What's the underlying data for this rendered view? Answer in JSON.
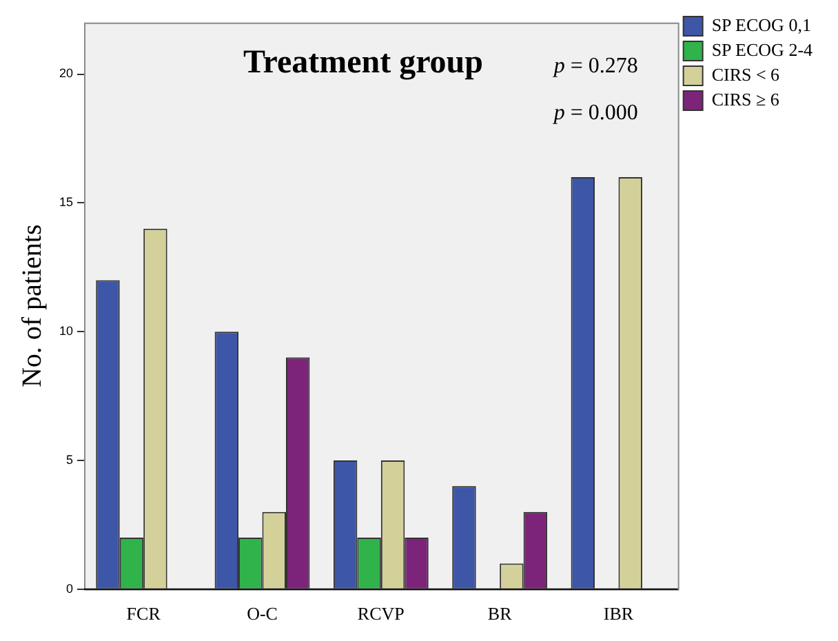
{
  "chart_data": {
    "type": "bar",
    "title": "Treatment group",
    "ylabel": "No. of patients",
    "categories": [
      "FCR",
      "O-C",
      "RCVP",
      "BR",
      "IBR"
    ],
    "series": [
      {
        "name": "SP ECOG 0,1",
        "color": "#3d56a8",
        "values": [
          12,
          10,
          5,
          4,
          16
        ]
      },
      {
        "name": "SP ECOG 2-4",
        "color": "#2fb34a",
        "values": [
          2,
          2,
          2,
          0,
          0
        ]
      },
      {
        "name": "CIRS < 6",
        "color": "#d4d09a",
        "values": [
          14,
          3,
          5,
          1,
          16
        ]
      },
      {
        "name": "CIRS ≥ 6",
        "color": "#7c2479",
        "values": [
          0,
          9,
          2,
          3,
          0
        ]
      }
    ],
    "ylim": [
      0,
      22
    ],
    "yticks": [
      0,
      5,
      10,
      15,
      20
    ],
    "grid": false,
    "legend": "top right",
    "annotations": [
      "p = 0.278",
      "p = 0.000"
    ]
  }
}
